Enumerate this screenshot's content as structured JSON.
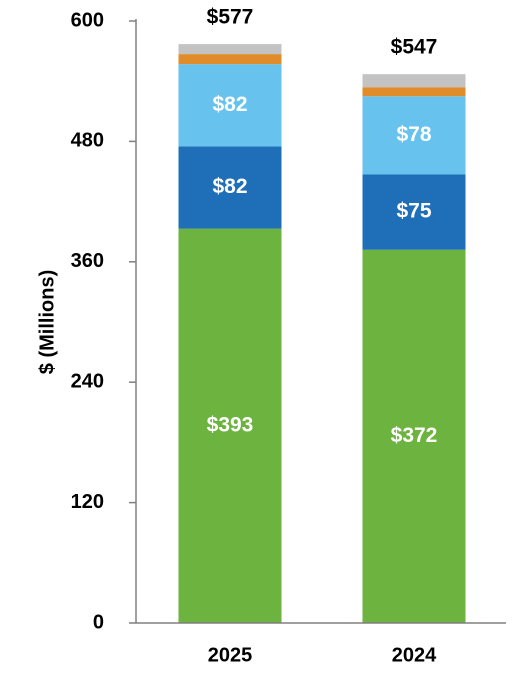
{
  "chart_data": {
    "type": "bar",
    "stacked": true,
    "categories": [
      "2025",
      "2024"
    ],
    "ylabel": "$ (Millions)",
    "ylim": [
      0,
      600
    ],
    "yticks": [
      0,
      120,
      240,
      360,
      480,
      600
    ],
    "grid": false,
    "legend": "none",
    "totals": [
      577,
      547
    ],
    "total_labels": [
      "$577",
      "$547"
    ],
    "series": [
      {
        "values": [
          393,
          372
        ],
        "labels": [
          "$393",
          "$372"
        ],
        "color": "#6db33f",
        "label_color": "#ffffff"
      },
      {
        "values": [
          82,
          75
        ],
        "labels": [
          "$82",
          "$75"
        ],
        "color": "#1f6fb8",
        "label_color": "#ffffff"
      },
      {
        "values": [
          82,
          78
        ],
        "labels": [
          "$82",
          "$78"
        ],
        "color": "#67c2ee",
        "label_color": "#ffffff"
      },
      {
        "values": [
          10,
          9
        ],
        "labels": [
          "",
          ""
        ],
        "color": "#e08c2a",
        "label_color": "#ffffff"
      },
      {
        "values": [
          10,
          13
        ],
        "labels": [
          "",
          ""
        ],
        "color": "#c3c3c3",
        "label_color": "#ffffff"
      }
    ]
  }
}
